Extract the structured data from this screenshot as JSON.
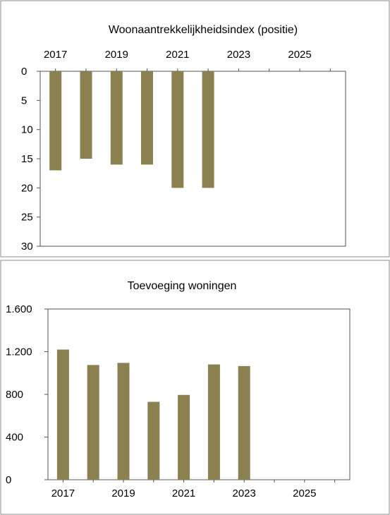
{
  "chart_data": [
    {
      "type": "bar",
      "title": "Woonaantrekkelijkheidsindex (positie)",
      "x_axis_position": "top",
      "y_axis_inverted": true,
      "xlim": [
        2016.5,
        2026.5
      ],
      "x_ticks": [
        2017,
        2019,
        2021,
        2023,
        2025
      ],
      "ylim": [
        0,
        30
      ],
      "y_ticks": [
        0,
        5,
        10,
        15,
        20,
        25,
        30
      ],
      "x": [
        2017,
        2018,
        2019,
        2020,
        2021,
        2022
      ],
      "values": [
        17,
        15,
        16,
        16,
        20,
        20
      ],
      "color": "#8b8050",
      "grid": false
    },
    {
      "type": "bar",
      "title": "Toevoeging woningen",
      "x_axis_position": "bottom",
      "y_axis_inverted": false,
      "xlim": [
        2016.5,
        2026.5
      ],
      "x_ticks": [
        2017,
        2019,
        2021,
        2023,
        2025
      ],
      "ylim": [
        0,
        1600
      ],
      "y_ticks": [
        0,
        400,
        800,
        1200,
        1600
      ],
      "y_tick_labels": [
        "0",
        "400",
        "800",
        "1.200",
        "1.600"
      ],
      "x": [
        2017,
        2018,
        2019,
        2020,
        2021,
        2022,
        2023
      ],
      "values": [
        1220,
        1075,
        1095,
        730,
        795,
        1080,
        1065
      ],
      "color": "#8b8050",
      "grid": false
    }
  ]
}
